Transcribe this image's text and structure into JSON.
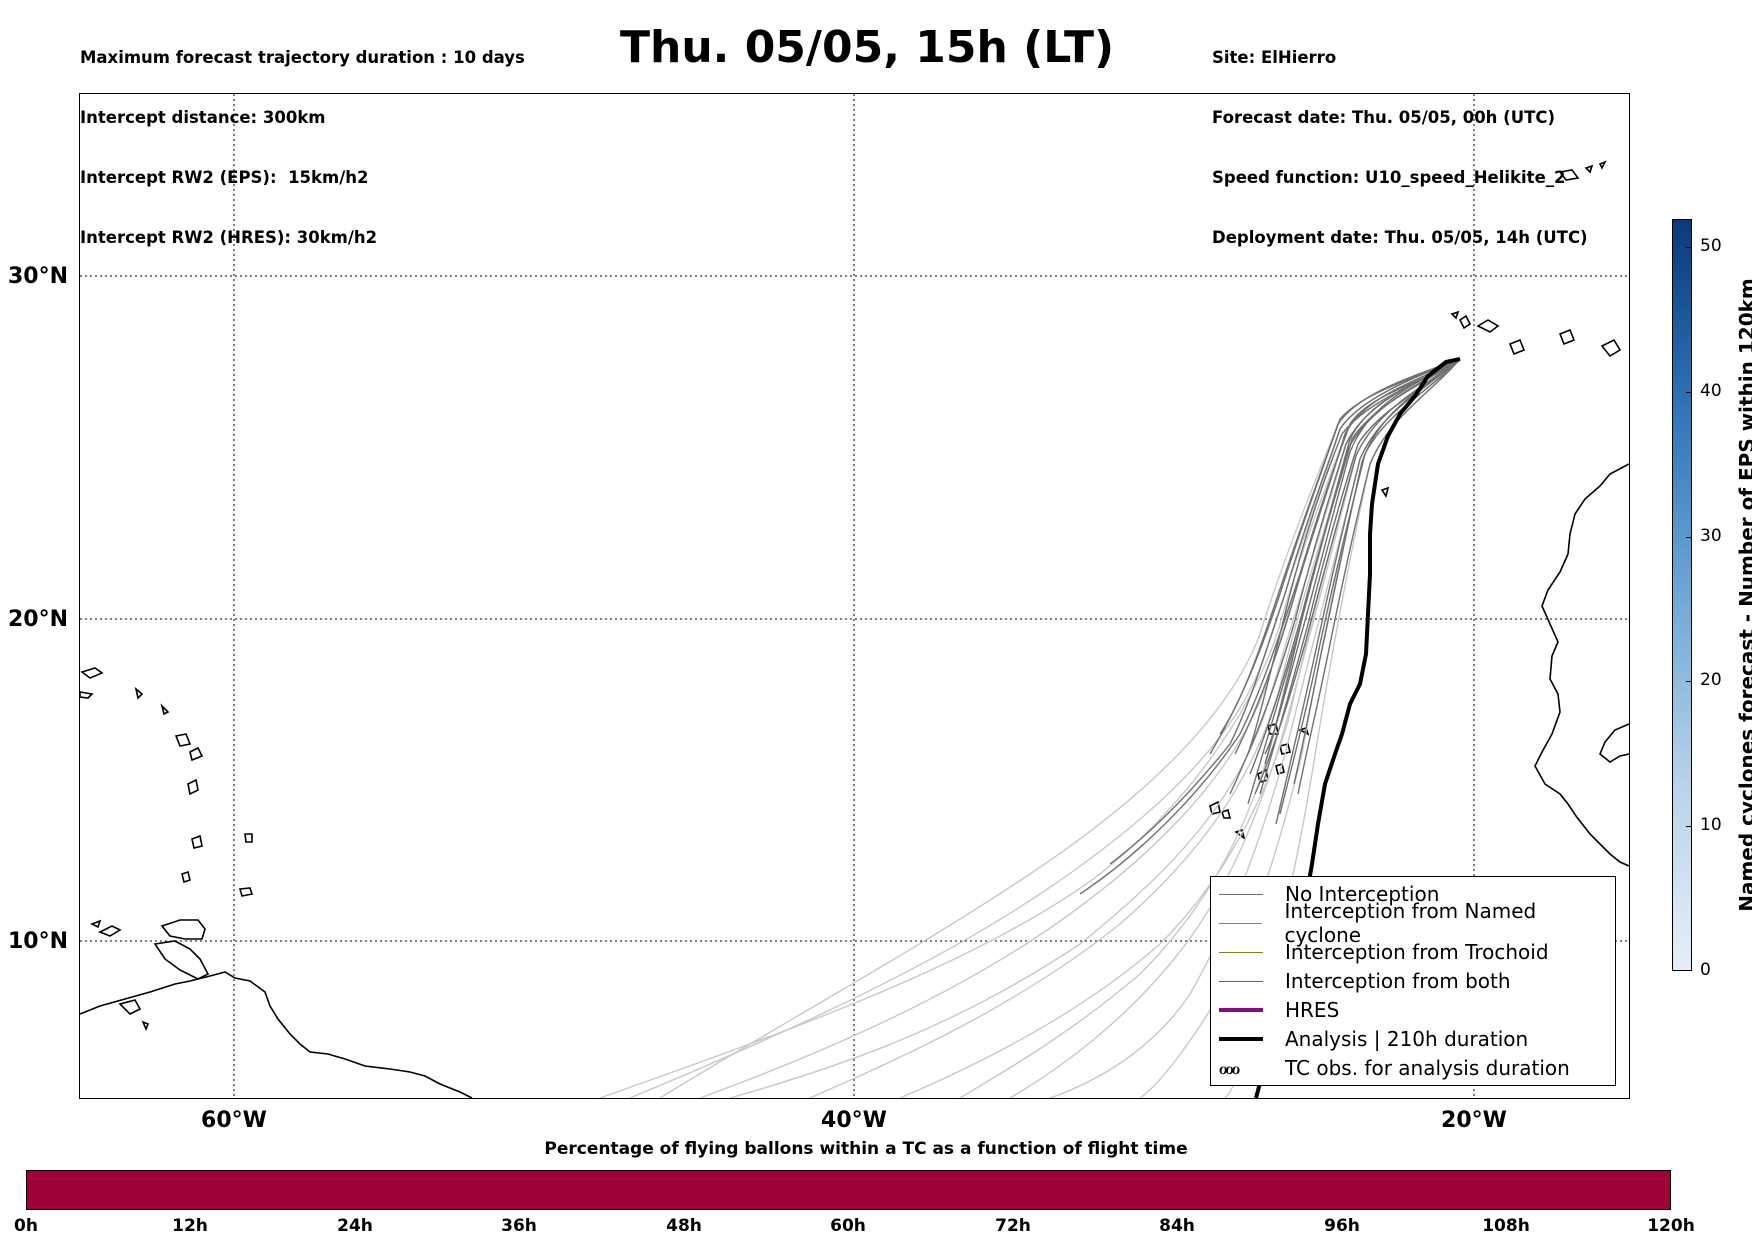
{
  "header": {
    "left_lines": [
      "Maximum forecast trajectory duration : 10 days",
      "Intercept distance: 300km",
      "Intercept RW2 (EPS):  15km/h2",
      "Intercept RW2 (HRES): 30km/h2"
    ],
    "title": "Thu. 05/05, 15h (LT)",
    "right_lines": [
      "Site: ElHierro",
      "Forecast date: Thu. 05/05, 00h (UTC)",
      "Speed function: U10_speed_Helikite_2",
      "Deployment date: Thu. 05/05, 14h (UTC)"
    ]
  },
  "map": {
    "lat_labels": [
      "30°N",
      "20°N",
      "10°N"
    ],
    "lon_labels": [
      "60°W",
      "40°W",
      "20°W"
    ],
    "colors": {
      "no_interception": "#707070",
      "eps_faded": "#c8c8c8",
      "analysis": "#000000",
      "hres": "#8b0a7f",
      "named_cyclone": "#e8602a",
      "trochoid": "#808020",
      "both": "#2a8a2a"
    }
  },
  "legend": {
    "items": [
      {
        "label": "No Interception",
        "color": "#707070",
        "style": "thin"
      },
      {
        "label": "Interception from Named cyclone",
        "color": "#e8602a",
        "style": "thin"
      },
      {
        "label": "Interception from Trochoid",
        "color": "#808020",
        "style": "thin"
      },
      {
        "label": "Interception from both",
        "color": "#2a8a2a",
        "style": "thin"
      },
      {
        "label": "HRES",
        "color": "#8b0a7f",
        "style": "thick"
      },
      {
        "label": "Analysis | 210h duration",
        "color": "#000000",
        "style": "thick"
      },
      {
        "label": "TC obs. for analysis duration",
        "symbol": "ℴℴℴ",
        "style": "symbol"
      }
    ]
  },
  "colorbar": {
    "label": "Named cyclones forecast - Number of EPS within 120km",
    "ticks": [
      "50",
      "40",
      "30",
      "20",
      "10",
      "0"
    ],
    "range": [
      0,
      52
    ],
    "color_low": "#e6eef8",
    "color_high": "#0a3a7a"
  },
  "bottom_bar": {
    "title": "Percentage of flying ballons within a TC as a function of flight time",
    "ticks": [
      "0h",
      "12h",
      "24h",
      "36h",
      "48h",
      "60h",
      "72h",
      "84h",
      "96h",
      "108h",
      "120h"
    ],
    "fill_color": "#a0003a"
  }
}
